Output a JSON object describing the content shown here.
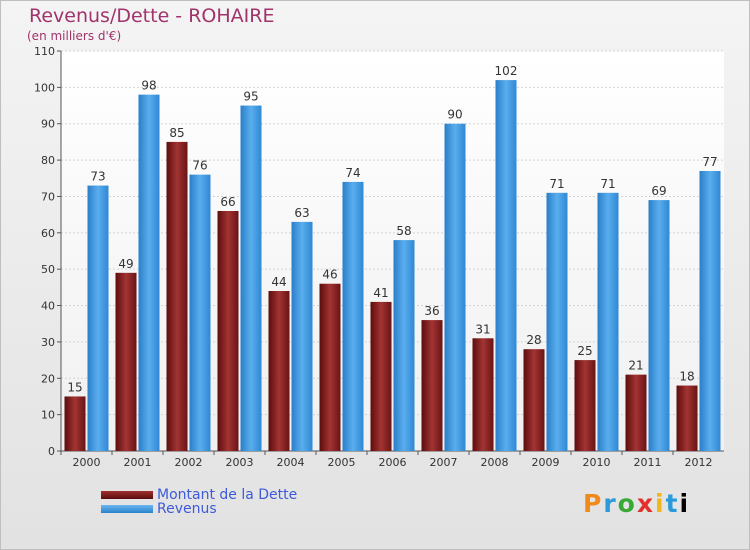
{
  "chart_data": {
    "type": "bar",
    "title": "Revenus/Dette - ROHAIRE",
    "subtitle": "(en milliers d'€)",
    "xlabel": "",
    "ylabel": "",
    "ylim": [
      0,
      110
    ],
    "yticks": [
      0,
      10,
      20,
      30,
      40,
      50,
      60,
      70,
      80,
      90,
      100,
      110
    ],
    "grid": true,
    "categories": [
      "2000",
      "2001",
      "2002",
      "2003",
      "2004",
      "2005",
      "2006",
      "2007",
      "2008",
      "2009",
      "2010",
      "2011",
      "2012"
    ],
    "series": [
      {
        "name": "Montant de la Dette",
        "color": "#7a1818",
        "values": [
          15,
          49,
          85,
          66,
          44,
          46,
          41,
          36,
          31,
          28,
          25,
          21,
          18
        ]
      },
      {
        "name": "Revenus",
        "color": "#3b96e0",
        "values": [
          73,
          98,
          76,
          95,
          63,
          74,
          58,
          90,
          102,
          71,
          71,
          69,
          77
        ]
      }
    ]
  },
  "logo": {
    "letters": [
      "P",
      "r",
      "o",
      "x",
      "i",
      "t",
      "i"
    ]
  }
}
